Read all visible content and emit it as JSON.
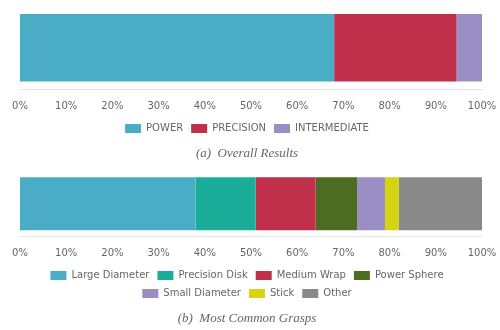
{
  "chart_data": [
    {
      "type": "bar",
      "orientation": "horizontal",
      "stacked": true,
      "title": "(a)  Overall Results",
      "categories": [
        null
      ],
      "series": [
        {
          "name": "POWER",
          "color": "#4bacc6",
          "values": [
            68.0
          ]
        },
        {
          "name": "PRECISION",
          "color": "#c0304a",
          "values": [
            26.5
          ]
        },
        {
          "name": "INTERMEDIATE",
          "color": "#9b8ec4",
          "values": [
            5.5
          ]
        }
      ],
      "xlim": [
        0,
        100
      ],
      "xticks": [
        {
          "value": 0,
          "label": "0%"
        },
        {
          "value": 10,
          "label": "10%"
        },
        {
          "value": 20,
          "label": "20%"
        },
        {
          "value": 30,
          "label": "30%"
        },
        {
          "value": 40,
          "label": "40%"
        },
        {
          "value": 50,
          "label": "50%"
        },
        {
          "value": 60,
          "label": "60%"
        },
        {
          "value": 70,
          "label": "70%"
        },
        {
          "value": 80,
          "label": "80%"
        },
        {
          "value": 90,
          "label": "90%"
        },
        {
          "value": 100,
          "label": "100%"
        }
      ],
      "tick_labels": "x",
      "grid": false,
      "legend": "bottom"
    },
    {
      "type": "bar",
      "orientation": "horizontal",
      "stacked": true,
      "title": "(b)  Most Common Grasps",
      "categories": [
        null
      ],
      "series": [
        {
          "name": "Large Diameter",
          "color": "#4bacc6",
          "values": [
            38.0
          ]
        },
        {
          "name": "Precision Disk",
          "color": "#1aad9a",
          "values": [
            13.0
          ]
        },
        {
          "name": "Medium Wrap",
          "color": "#c0304a",
          "values": [
            13.0
          ]
        },
        {
          "name": "Power Sphere",
          "color": "#4e6b24",
          "values": [
            9.0
          ]
        },
        {
          "name": "Small Diameter",
          "color": "#9b8ec4",
          "values": [
            6.0
          ]
        },
        {
          "name": "Stick",
          "color": "#d4d413",
          "values": [
            3.0
          ]
        },
        {
          "name": "Other",
          "color": "#898989",
          "values": [
            18.0
          ]
        }
      ],
      "xlim": [
        0,
        100
      ],
      "xticks": [
        {
          "value": 0,
          "label": "0%"
        },
        {
          "value": 10,
          "label": "10%"
        },
        {
          "value": 20,
          "label": "20%"
        },
        {
          "value": 30,
          "label": "30%"
        },
        {
          "value": 40,
          "label": "40%"
        },
        {
          "value": 50,
          "label": "50%"
        },
        {
          "value": 60,
          "label": "60%"
        },
        {
          "value": 70,
          "label": "70%"
        },
        {
          "value": 80,
          "label": "80%"
        },
        {
          "value": 90,
          "label": "90%"
        },
        {
          "value": 100,
          "label": "100%"
        }
      ],
      "tick_labels": "x",
      "grid": false,
      "legend": "bottom"
    }
  ]
}
